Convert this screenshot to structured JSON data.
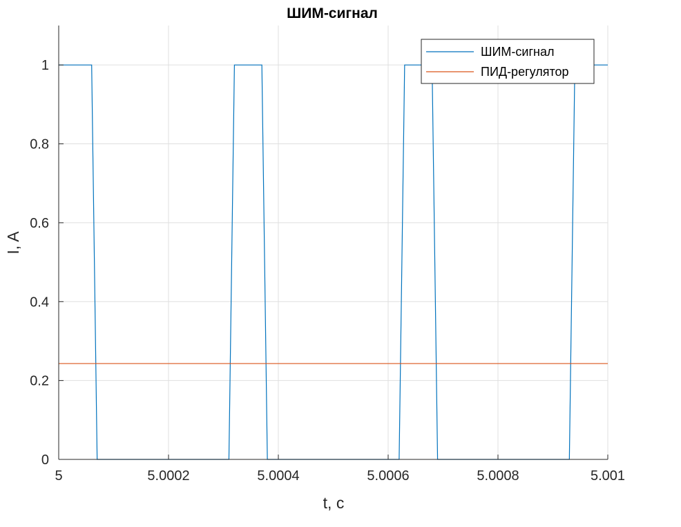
{
  "chart_data": {
    "type": "line",
    "title": "ШИМ-сигнал",
    "xlabel": "t, c",
    "ylabel": "I, A",
    "xlim": [
      5.0,
      5.001
    ],
    "ylim": [
      0,
      1.1
    ],
    "x_ticks": [
      5.0,
      5.0002,
      5.0004,
      5.0006,
      5.0008,
      5.001
    ],
    "x_tick_labels": [
      "5",
      "5.0002",
      "5.0004",
      "5.0006",
      "5.0008",
      "5.001"
    ],
    "y_ticks": [
      0,
      0.2,
      0.4,
      0.6,
      0.8,
      1.0
    ],
    "y_tick_labels": [
      "0",
      "0.2",
      "0.4",
      "0.6",
      "0.8",
      "1"
    ],
    "grid": true,
    "legend_position": "top-right",
    "series": [
      {
        "name": "ШИМ-сигнал",
        "color": "#0072BD",
        "x": [
          5.0,
          5.00006,
          5.00007,
          5.00031,
          5.00032,
          5.00037,
          5.00038,
          5.00062,
          5.00063,
          5.00068,
          5.00069,
          5.00093,
          5.00094,
          5.001
        ],
        "y": [
          1,
          1,
          0,
          0,
          1,
          1,
          0,
          0,
          1,
          1,
          0,
          0,
          1,
          1
        ]
      },
      {
        "name": "ПИД-регулятор",
        "color": "#D95319",
        "x": [
          5.0,
          5.001
        ],
        "y": [
          0.243,
          0.243
        ]
      }
    ]
  }
}
